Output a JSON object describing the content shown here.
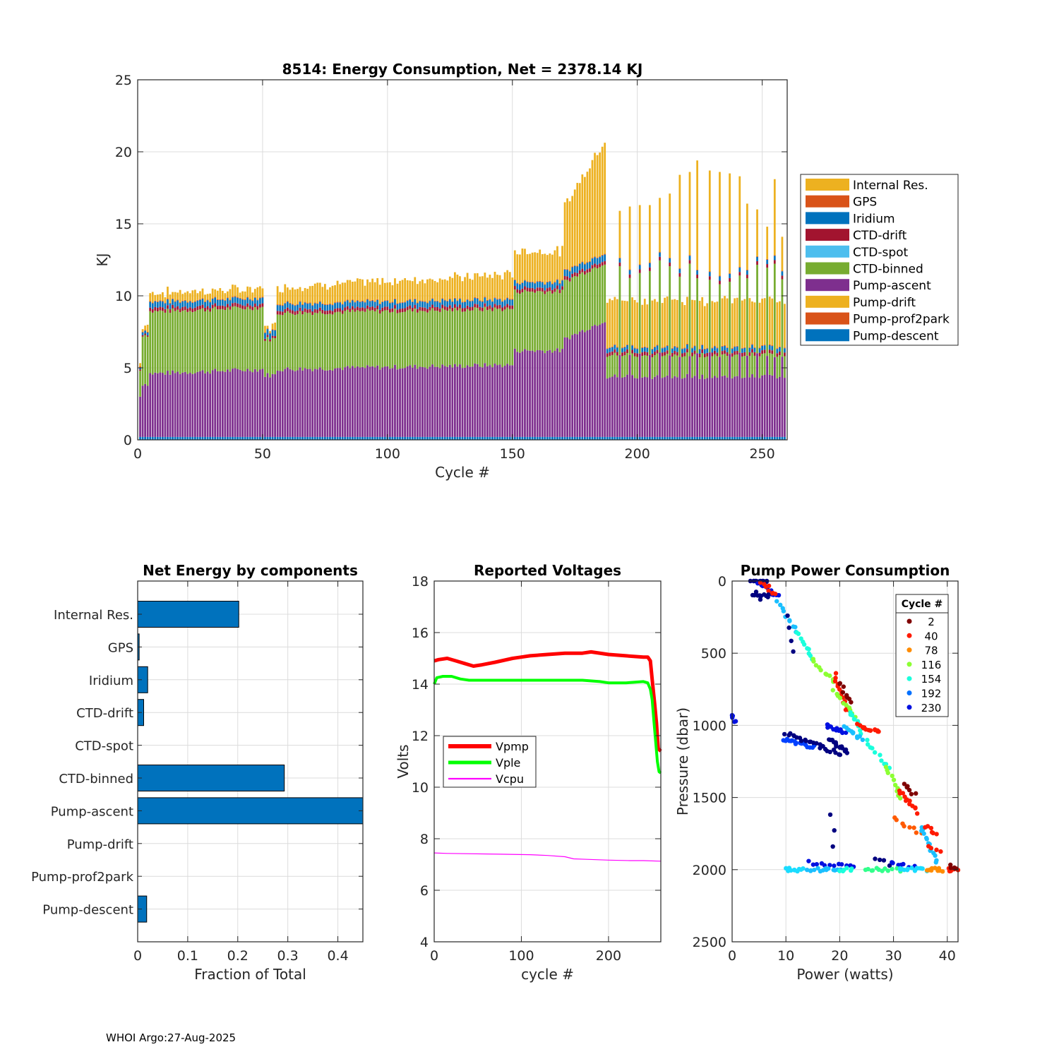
{
  "footer": "WHOI Argo:27-Aug-2025",
  "chart_data": [
    {
      "id": "energy",
      "type": "bar",
      "stacked": true,
      "title": "8514: Energy Consumption,  Net = 2378.14 KJ",
      "xlabel": "Cycle #",
      "ylabel": "KJ",
      "xlim": [
        0,
        260
      ],
      "ylim": [
        0,
        25
      ],
      "xticks": [
        0,
        50,
        100,
        150,
        200,
        250
      ],
      "yticks": [
        0,
        5,
        10,
        15,
        20,
        25
      ],
      "grid": true,
      "legend_position": "outside-right",
      "stack_order": [
        "Pump-descent",
        "Pump-prof2park",
        "Pump-drift",
        "Pump-ascent",
        "CTD-binned",
        "CTD-spot",
        "CTD-drift",
        "Iridium",
        "GPS",
        "Internal Res."
      ],
      "legend": [
        {
          "name": "Internal Res.",
          "color": "#EDB120"
        },
        {
          "name": "GPS",
          "color": "#D95319"
        },
        {
          "name": "Iridium",
          "color": "#0072BD"
        },
        {
          "name": "CTD-drift",
          "color": "#A2142F"
        },
        {
          "name": "CTD-spot",
          "color": "#4DBEEE"
        },
        {
          "name": "CTD-binned",
          "color": "#77AC30"
        },
        {
          "name": "Pump-ascent",
          "color": "#7E2F8E"
        },
        {
          "name": "Pump-drift",
          "color": "#EDB120"
        },
        {
          "name": "Pump-prof2park",
          "color": "#D95319"
        },
        {
          "name": "Pump-descent",
          "color": "#0072BD"
        }
      ],
      "cycles": {
        "first": 1,
        "last": 259
      },
      "segments_note": "Approximate per-cycle values (KJ), piecewise linear by cycle ranges",
      "segments": [
        {
          "from": 1,
          "to": 1,
          "descent": 0.2,
          "ascent": 2.8,
          "binned": 1.8,
          "drift_ctd": 0.1,
          "iridium": 0.1,
          "gps": 0.1,
          "internal": 0.2
        },
        {
          "from": 2,
          "to": 4,
          "descent": 0.2,
          "ascent": 3.7,
          "binned": 3.4,
          "drift_ctd": 0.1,
          "iridium": 0.2,
          "gps": 0.05,
          "internal": 0.3
        },
        {
          "from": 5,
          "to": 50,
          "descent": 0.2,
          "ascent": 4.4,
          "binned": 4.3,
          "drift_ctd": 0.25,
          "iridium": 0.4,
          "gps": 0.05,
          "internal": 0.6,
          "ascent_end": 4.7
        },
        {
          "from": 51,
          "to": 55,
          "descent": 0.2,
          "ascent": 4.3,
          "binned": 2.5,
          "drift_ctd": 0.15,
          "iridium": 0.4,
          "gps": 0.05,
          "internal": 0.3
        },
        {
          "from": 56,
          "to": 150,
          "descent": 0.2,
          "ascent": 4.7,
          "binned": 3.9,
          "drift_ctd": 0.25,
          "iridium": 0.4,
          "gps": 0.05,
          "internal": 1.1,
          "ascent_end": 5.0,
          "internal_end": 1.7
        },
        {
          "from": 151,
          "to": 170,
          "descent": 0.2,
          "ascent": 6.0,
          "binned": 4.1,
          "drift_ctd": 0.25,
          "iridium": 0.4,
          "gps": 0.05,
          "internal": 2.1
        },
        {
          "from": 171,
          "to": 187,
          "descent": 0.2,
          "ascent": 6.8,
          "binned": 4.0,
          "drift_ctd": 0.25,
          "iridium": 0.45,
          "gps": 0.05,
          "internal": 4.5,
          "ascent_end": 8.1,
          "internal_end": 7.8
        },
        {
          "from": 188,
          "to": 259,
          "descent": 0.2,
          "ascent": 4.2,
          "binned": 1.5,
          "drift_ctd": 0.25,
          "iridium": 0.3,
          "gps": 0.05,
          "internal": 3.2
        }
      ],
      "spikes_note": "Every ~4th cycle after 188 has larger CTD-binned and Internal Res.",
      "spikes": [
        {
          "cycle": 193,
          "total": 15.9
        },
        {
          "cycle": 197,
          "total": 16.2
        },
        {
          "cycle": 201,
          "total": 16.3
        },
        {
          "cycle": 205,
          "total": 16.3
        },
        {
          "cycle": 209,
          "total": 16.8
        },
        {
          "cycle": 213,
          "total": 17.1
        },
        {
          "cycle": 217,
          "total": 18.4
        },
        {
          "cycle": 221,
          "total": 18.6
        },
        {
          "cycle": 224,
          "total": 19.4
        },
        {
          "cycle": 229,
          "total": 18.7
        },
        {
          "cycle": 233,
          "total": 18.6
        },
        {
          "cycle": 237,
          "total": 18.5
        },
        {
          "cycle": 241,
          "total": 18.3
        },
        {
          "cycle": 244,
          "total": 16.4
        },
        {
          "cycle": 248,
          "total": 16.0
        },
        {
          "cycle": 252,
          "total": 14.8
        },
        {
          "cycle": 255,
          "total": 18.1
        },
        {
          "cycle": 258,
          "total": 14.1
        }
      ]
    },
    {
      "id": "components",
      "type": "bar",
      "orientation": "horizontal",
      "title": "Net Energy by components",
      "xlabel": "Fraction of Total",
      "ylabel": "",
      "xlim": [
        0,
        0.45
      ],
      "xticks": [
        0,
        0.1,
        0.2,
        0.3,
        0.4
      ],
      "xtick_labels": [
        "0",
        "0.1",
        "0.2",
        "0.3",
        "0.4"
      ],
      "grid": true,
      "color": "#0072BD",
      "categories": [
        "Internal Res.",
        "GPS",
        "Iridium",
        "CTD-drift",
        "CTD-spot",
        "CTD-binned",
        "Pump-ascent",
        "Pump-drift",
        "Pump-prof2park",
        "Pump-descent"
      ],
      "values": [
        0.202,
        0.003,
        0.02,
        0.012,
        0.0,
        0.293,
        0.46,
        0.0,
        0.0,
        0.018
      ]
    },
    {
      "id": "voltages",
      "type": "line",
      "title": "Reported Voltages",
      "xlabel": "cycle #",
      "ylabel": "Volts",
      "xlim": [
        0,
        260
      ],
      "ylim": [
        4,
        18
      ],
      "xticks": [
        0,
        100,
        200
      ],
      "yticks": [
        4,
        6,
        8,
        10,
        12,
        14,
        16,
        18
      ],
      "grid": true,
      "legend_position": "left-middle",
      "series": [
        {
          "name": "Vpmp",
          "color": "#FF0000",
          "x": [
            0,
            5,
            15,
            25,
            35,
            45,
            55,
            70,
            90,
            100,
            110,
            130,
            150,
            170,
            180,
            200,
            220,
            240,
            245,
            248,
            250,
            253,
            255,
            257,
            260
          ],
          "y": [
            14.9,
            14.95,
            15.0,
            14.9,
            14.8,
            14.7,
            14.75,
            14.85,
            15.0,
            15.05,
            15.1,
            15.15,
            15.2,
            15.2,
            15.25,
            15.15,
            15.1,
            15.05,
            15.05,
            14.9,
            14.2,
            13.2,
            12.5,
            11.5,
            11.4
          ]
        },
        {
          "name": "Vple",
          "color": "#00FF00",
          "x": [
            0,
            3,
            10,
            20,
            30,
            40,
            50,
            70,
            100,
            130,
            150,
            170,
            190,
            200,
            220,
            240,
            245,
            248,
            250,
            252,
            254,
            256,
            258,
            260
          ],
          "y": [
            14.0,
            14.25,
            14.3,
            14.3,
            14.2,
            14.15,
            14.15,
            14.15,
            14.15,
            14.15,
            14.15,
            14.15,
            14.1,
            14.05,
            14.05,
            14.1,
            14.05,
            13.8,
            13.4,
            12.6,
            11.8,
            11.0,
            10.6,
            10.55
          ]
        },
        {
          "name": "Vcpu",
          "color": "#FF00FF",
          "x": [
            0,
            15,
            75,
            110,
            130,
            150,
            160,
            175,
            200,
            225,
            240,
            260
          ],
          "y": [
            7.45,
            7.43,
            7.4,
            7.38,
            7.35,
            7.3,
            7.22,
            7.2,
            7.17,
            7.15,
            7.15,
            7.13
          ]
        }
      ]
    },
    {
      "id": "pump",
      "type": "scatter",
      "title": "Pump Power Consumption",
      "xlabel": "Power (watts)",
      "ylabel": "Pressure (dbar)",
      "xlim": [
        0,
        42
      ],
      "ylim": [
        0,
        2500
      ],
      "y_reversed": true,
      "xticks": [
        0,
        10,
        20,
        30,
        40
      ],
      "yticks": [
        0,
        500,
        1000,
        1500,
        2000,
        2500
      ],
      "grid": true,
      "colormap": "jet",
      "legend_title": "Cycle #",
      "legend_position": "top-right",
      "legend": [
        {
          "cycle": 2,
          "color": "#800000"
        },
        {
          "cycle": 40,
          "color": "#FF1A00"
        },
        {
          "cycle": 78,
          "color": "#FF8C00"
        },
        {
          "cycle": 116,
          "color": "#8CFF33"
        },
        {
          "cycle": 154,
          "color": "#1AFFDC"
        },
        {
          "cycle": 192,
          "color": "#0070FF"
        },
        {
          "cycle": 230,
          "color": "#0010E0"
        }
      ],
      "clusters_note": "Approximate point clusters: [power_from, pressure_from, power_to, pressure_to, n, color]",
      "clusters": [
        [
          3.5,
          0,
          6.5,
          0,
          14,
          "#000080"
        ],
        [
          5.0,
          10,
          8.5,
          110,
          12,
          "#0010E0"
        ],
        [
          5.5,
          0,
          8.0,
          100,
          8,
          "#FF1A00"
        ],
        [
          4.0,
          100,
          7.0,
          100,
          8,
          "#000080"
        ],
        [
          4.5,
          70,
          5.0,
          120,
          3,
          "#000080"
        ],
        [
          8.5,
          150,
          12.0,
          350,
          10,
          "#1ABFFF"
        ],
        [
          12.0,
          350,
          15.0,
          550,
          10,
          "#1AFFDC"
        ],
        [
          10.5,
          250,
          11.5,
          500,
          4,
          "#000080"
        ],
        [
          15.0,
          550,
          19.0,
          700,
          10,
          "#8CFF33"
        ],
        [
          19.0,
          650,
          21.5,
          900,
          14,
          "#FF1A00"
        ],
        [
          20.0,
          700,
          22.0,
          850,
          8,
          "#800000"
        ],
        [
          19.0,
          750,
          23.0,
          950,
          10,
          "#8CFF33"
        ],
        [
          22.0,
          900,
          24.0,
          1050,
          10,
          "#1AFFDC"
        ],
        [
          23.5,
          1000,
          27.5,
          1050,
          14,
          "#FF1A00"
        ],
        [
          9.5,
          1100,
          15.0,
          1150,
          18,
          "#0040FF"
        ],
        [
          10.0,
          1050,
          20.0,
          1200,
          24,
          "#000080"
        ],
        [
          17.5,
          1000,
          21.0,
          1050,
          14,
          "#0010E0"
        ],
        [
          18.0,
          1100,
          21.5,
          1180,
          14,
          "#000080"
        ],
        [
          21.0,
          1000,
          24.0,
          1100,
          10,
          "#1ABFFF"
        ],
        [
          25.0,
          1100,
          29.0,
          1300,
          10,
          "#1AFFDC"
        ],
        [
          28.5,
          1280,
          31.5,
          1500,
          10,
          "#8CFF33"
        ],
        [
          31.0,
          1450,
          34.5,
          1600,
          12,
          "#FF1A00"
        ],
        [
          32.0,
          1400,
          34.0,
          1480,
          6,
          "#800000"
        ],
        [
          30.0,
          1650,
          35.0,
          1750,
          8,
          "#FF5A00"
        ],
        [
          35.0,
          1700,
          38.0,
          1950,
          14,
          "#1ABFFF"
        ],
        [
          36.0,
          1700,
          38.0,
          1750,
          6,
          "#FF1A00"
        ],
        [
          36.5,
          1850,
          38.5,
          1880,
          4,
          "#FF1A00"
        ],
        [
          18.5,
          1620,
          19.0,
          1850,
          3,
          "#000080"
        ],
        [
          14.5,
          1950,
          22.5,
          1980,
          12,
          "#0010E0"
        ],
        [
          26.5,
          1920,
          29.5,
          1960,
          4,
          "#000080"
        ],
        [
          29.5,
          1960,
          34.0,
          1980,
          8,
          "#0010E0"
        ],
        [
          10.0,
          2000,
          13.0,
          2000,
          10,
          "#1ADCFF"
        ],
        [
          14.0,
          2000,
          20.0,
          2000,
          14,
          "#1ABFFF"
        ],
        [
          20.0,
          2000,
          22.5,
          2000,
          6,
          "#1AFFDC"
        ],
        [
          24.5,
          2000,
          31.0,
          2000,
          12,
          "#33FF8C"
        ],
        [
          31.0,
          2000,
          36.0,
          2000,
          14,
          "#1ADCFF"
        ],
        [
          36.0,
          2000,
          39.0,
          2000,
          10,
          "#FF8C00"
        ],
        [
          40.0,
          2000,
          42.0,
          2000,
          10,
          "#FF1A00"
        ],
        [
          40.5,
          1970,
          41.5,
          1990,
          4,
          "#800000"
        ],
        [
          0.0,
          920,
          0.5,
          970,
          6,
          "#0010E0"
        ]
      ]
    }
  ]
}
